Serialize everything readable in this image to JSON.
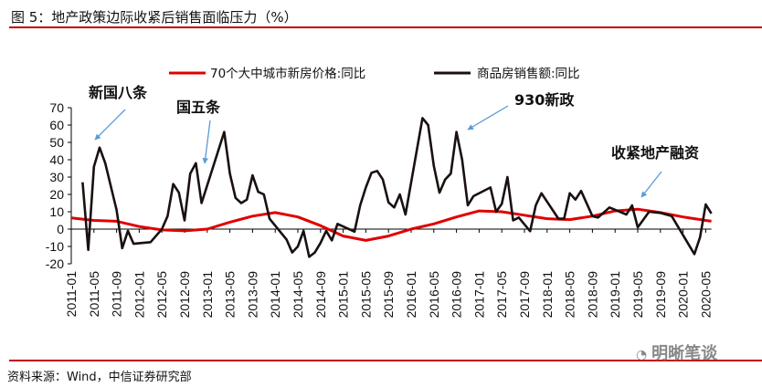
{
  "title": "图 5：地产政策边际收紧后销售面临压力（%）",
  "source": "资料来源：Wind，中信证券研究部",
  "watermark": "明晰笔谈",
  "chart_data": {
    "type": "line",
    "title": "图 5：地产政策边际收紧后销售面临压力（%）",
    "ylim": [
      -20,
      70
    ],
    "yticks": [
      -20,
      -10,
      0,
      10,
      20,
      30,
      40,
      50,
      60,
      70
    ],
    "xticks": [
      "2011-01",
      "2011-05",
      "2011-09",
      "2012-01",
      "2012-05",
      "2012-09",
      "2013-01",
      "2013-05",
      "2013-09",
      "2014-01",
      "2014-05",
      "2014-09",
      "2015-01",
      "2015-05",
      "2015-09",
      "2016-01",
      "2016-05",
      "2016-09",
      "2017-01",
      "2017-05",
      "2017-09",
      "2018-01",
      "2018-05",
      "2018-09",
      "2019-01",
      "2019-05",
      "2019-09",
      "2020-01",
      "2020-05"
    ],
    "grid": false,
    "legend": "top",
    "series": [
      {
        "name": "70个大中城市新房价格:同比",
        "color": "#e00000",
        "points": [
          [
            "2011-01",
            6.5
          ],
          [
            "2011-05",
            5
          ],
          [
            "2011-09",
            4.5
          ],
          [
            "2012-01",
            1.5
          ],
          [
            "2012-05",
            -0.5
          ],
          [
            "2012-09",
            -1
          ],
          [
            "2013-01",
            0
          ],
          [
            "2013-05",
            4
          ],
          [
            "2013-09",
            7.5
          ],
          [
            "2014-01",
            9.5
          ],
          [
            "2014-05",
            7
          ],
          [
            "2014-09",
            2
          ],
          [
            "2015-01",
            -4
          ],
          [
            "2015-05",
            -6.5
          ],
          [
            "2015-09",
            -4
          ],
          [
            "2016-01",
            0
          ],
          [
            "2016-05",
            3
          ],
          [
            "2016-09",
            7
          ],
          [
            "2017-01",
            10.5
          ],
          [
            "2017-05",
            10
          ],
          [
            "2017-09",
            8
          ],
          [
            "2018-01",
            6
          ],
          [
            "2018-05",
            5.5
          ],
          [
            "2018-09",
            7.5
          ],
          [
            "2019-01",
            10.5
          ],
          [
            "2019-05",
            11.5
          ],
          [
            "2019-09",
            9.5
          ],
          [
            "2020-01",
            7
          ],
          [
            "2020-05",
            5
          ],
          [
            "2020-06",
            4.5
          ]
        ]
      },
      {
        "name": "商品房销售额:同比",
        "color": "#1a1010",
        "points": [
          [
            "2011-03",
            27
          ],
          [
            "2011-04",
            -12
          ],
          [
            "2011-05",
            36
          ],
          [
            "2011-06",
            47
          ],
          [
            "2011-07",
            38
          ],
          [
            "2011-09",
            11
          ],
          [
            "2011-10",
            -11
          ],
          [
            "2011-11",
            -1
          ],
          [
            "2011-12",
            -8.5
          ],
          [
            "2012-03",
            -7.5
          ],
          [
            "2012-05",
            0
          ],
          [
            "2012-06",
            7.5
          ],
          [
            "2012-07",
            26
          ],
          [
            "2012-08",
            21
          ],
          [
            "2012-09",
            5
          ],
          [
            "2012-10",
            32
          ],
          [
            "2012-11",
            38
          ],
          [
            "2012-12",
            15
          ],
          [
            "2013-04",
            56
          ],
          [
            "2013-05",
            32
          ],
          [
            "2013-06",
            18
          ],
          [
            "2013-07",
            15
          ],
          [
            "2013-08",
            17
          ],
          [
            "2013-09",
            31
          ],
          [
            "2013-10",
            21.5
          ],
          [
            "2013-11",
            20
          ],
          [
            "2013-12",
            6
          ],
          [
            "2014-03",
            -6
          ],
          [
            "2014-04",
            -13.5
          ],
          [
            "2014-05",
            -10
          ],
          [
            "2014-06",
            -1
          ],
          [
            "2014-07",
            -16
          ],
          [
            "2014-08",
            -13.5
          ],
          [
            "2014-09",
            -8
          ],
          [
            "2014-10",
            -1
          ],
          [
            "2014-11",
            -6.5
          ],
          [
            "2014-12",
            3
          ],
          [
            "2015-03",
            -1.5
          ],
          [
            "2015-04",
            13.7
          ],
          [
            "2015-05",
            24
          ],
          [
            "2015-06",
            32.5
          ],
          [
            "2015-07",
            33.5
          ],
          [
            "2015-08",
            28.6
          ],
          [
            "2015-09",
            15.4
          ],
          [
            "2015-10",
            12.5
          ],
          [
            "2015-11",
            20
          ],
          [
            "2015-12",
            8.4
          ],
          [
            "2016-03",
            64
          ],
          [
            "2016-04",
            60
          ],
          [
            "2016-05",
            36.5
          ],
          [
            "2016-06",
            21
          ],
          [
            "2016-07",
            28.6
          ],
          [
            "2016-08",
            32
          ],
          [
            "2016-09",
            56
          ],
          [
            "2016-10",
            40
          ],
          [
            "2016-11",
            13.7
          ],
          [
            "2016-12",
            19
          ],
          [
            "2017-03",
            24
          ],
          [
            "2017-04",
            10
          ],
          [
            "2017-05",
            14.5
          ],
          [
            "2017-06",
            30
          ],
          [
            "2017-07",
            5
          ],
          [
            "2017-08",
            6.7
          ],
          [
            "2017-10",
            -1.2
          ],
          [
            "2017-11",
            13.7
          ],
          [
            "2017-12",
            20.7
          ],
          [
            "2018-03",
            6
          ],
          [
            "2018-04",
            6
          ],
          [
            "2018-05",
            20.7
          ],
          [
            "2018-06",
            17
          ],
          [
            "2018-07",
            22
          ],
          [
            "2018-09",
            7.5
          ],
          [
            "2018-10",
            6.7
          ],
          [
            "2018-12",
            12.5
          ],
          [
            "2019-03",
            8.4
          ],
          [
            "2019-04",
            13.7
          ],
          [
            "2019-05",
            1
          ],
          [
            "2019-07",
            10
          ],
          [
            "2019-09",
            9.3
          ],
          [
            "2019-11",
            7.5
          ],
          [
            "2020-03",
            -14.4
          ],
          [
            "2020-04",
            -4.7
          ],
          [
            "2020-05",
            14.2
          ],
          [
            "2020-06",
            9
          ]
        ]
      }
    ],
    "annotations": [
      {
        "text": "新国八条",
        "date": "2011-06"
      },
      {
        "text": "国五条",
        "date": "2013-01"
      },
      {
        "text": "930新政",
        "date": "2016-09"
      },
      {
        "text": "收紧地产融资",
        "date": "2019-05"
      }
    ],
    "annotation_arrow_color": "#5b9bd5"
  }
}
